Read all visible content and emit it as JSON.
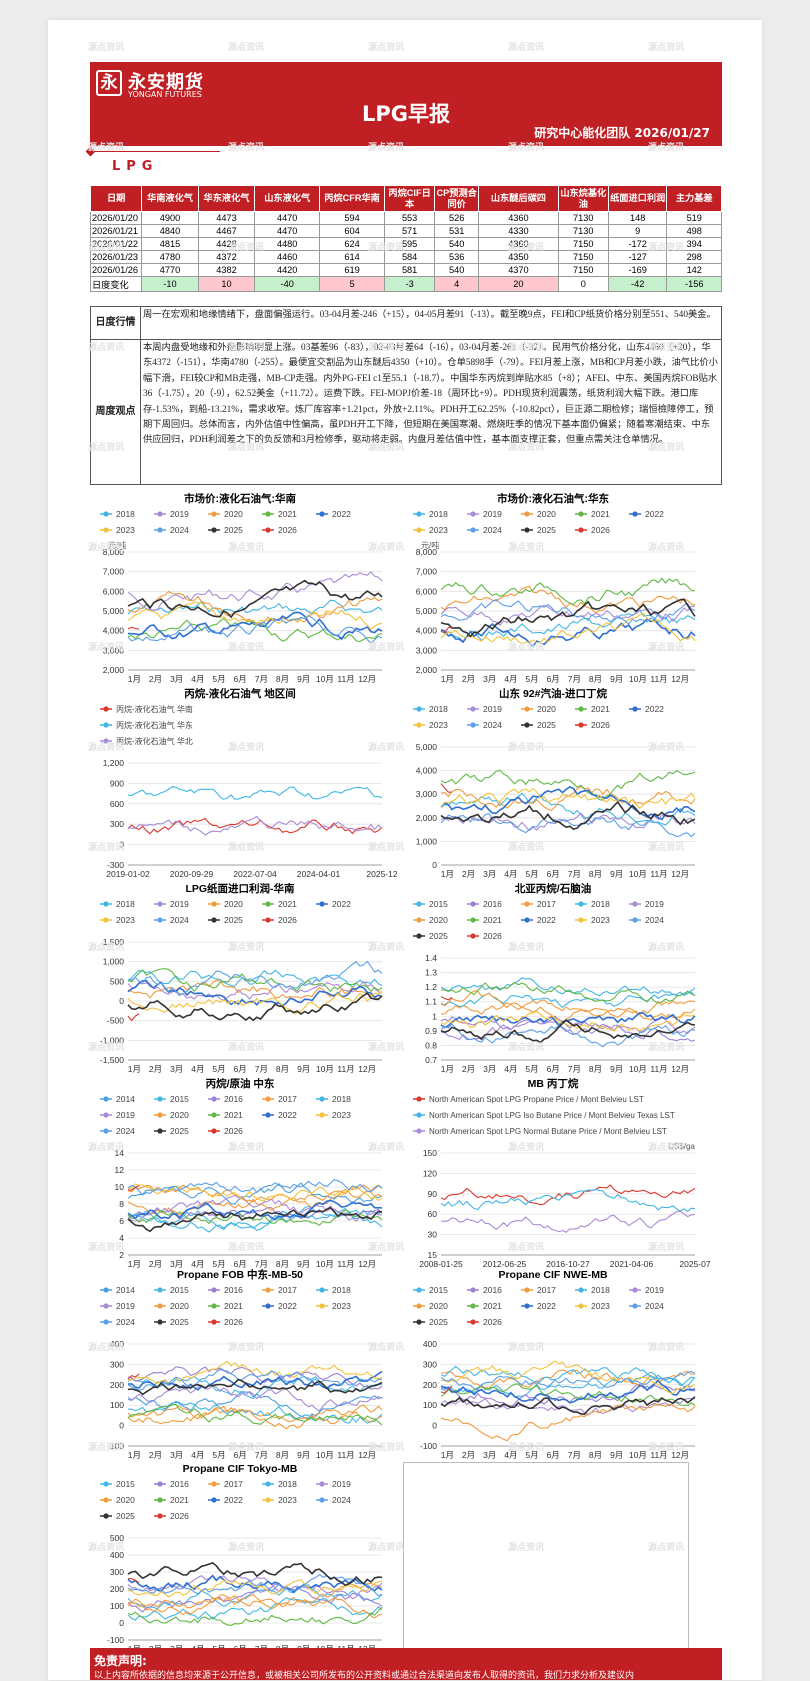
{
  "header": {
    "logo_mark": "永",
    "company_cn": "永安期货",
    "company_en": "YONGAN FUTURES",
    "title": "LPG早报",
    "team_date": "研究中心能化团队  2026/01/27"
  },
  "section": {
    "title": "LPG"
  },
  "price_table": {
    "headers": [
      "日期",
      "华南液化气",
      "华东液化气",
      "山东液化气",
      "丙烷CFR华南",
      "丙烷CIF日本",
      "CP预测合同价",
      "山东醚后碳四",
      "山东烷基化油",
      "纸面进口利润",
      "主力基差"
    ],
    "rows": [
      [
        "2026/01/20",
        "4900",
        "4473",
        "4470",
        "594",
        "553",
        "526",
        "4360",
        "7130",
        "148",
        "519"
      ],
      [
        "2026/01/21",
        "4840",
        "4467",
        "4470",
        "604",
        "571",
        "531",
        "4330",
        "7130",
        "9",
        "498"
      ],
      [
        "2026/01/22",
        "4815",
        "4428",
        "4480",
        "624",
        "595",
        "540",
        "4360",
        "7150",
        "-172",
        "394"
      ],
      [
        "2026/01/23",
        "4780",
        "4372",
        "4460",
        "614",
        "584",
        "536",
        "4350",
        "7150",
        "-127",
        "298"
      ],
      [
        "2026/01/26",
        "4770",
        "4382",
        "4420",
        "619",
        "581",
        "540",
        "4370",
        "7150",
        "-169",
        "142"
      ]
    ],
    "change_label": "日度变化",
    "change": [
      "-10",
      "10",
      "-40",
      "5",
      "-3",
      "4",
      "20",
      "0",
      "-42",
      "-156"
    ],
    "change_colors": [
      "g",
      "r",
      "g",
      "r",
      "g",
      "r",
      "r",
      "",
      "g",
      "g"
    ]
  },
  "commentary": {
    "daily_label": "日度行情",
    "daily_text": "周一在宏观和地缘情绪下，盘面偏强运行。03-04月差-246（+15），04-05月差91（-13）。截至晚9点，FEI和CP纸货价格分别至551、540美金。",
    "weekly_label": "周度观点",
    "weekly_text": "本周内盘受地缘和外盘影响明显上涨。03基差96（-83），02-03月差64（-16），03-04月差-261（-32）。民用气价格分化，山东4460（+20），华东4372（-151），华南4780（-255）。最便宜交割品为山东醚后4350（+10）。仓单5898手（-79）。FEI月差上涨，MB和CP月差小跌，油气比价小幅下滑，FEI较CP和MB走强，MB-CP走强。内外PG-FEI c1至55.1（-18.7）。中国华东丙烷到岸贴水85（+8）；AFEI、中东、美国丙烷FOB贴水36（-1.75），20（-9），62.52美金（+11.72）。运费下跌。FEI-MOPJ价差-18（周环比+9）。PDH现货利润震荡，纸货利润大幅下跌。港口库存-1.53%，到船-13.21%，需求收窄。炼厂库容率+1.21pct，外放+2.11%。PDH开工62.25%（-10.82pct），巨正源二期检修；瑞恒檢障停工，预期下周回归。总体而言，内外估值中性偏高，虽PDH开工下降，但短期在美国寒潮、燃烧旺季的情况下基本面仍偏紧；随着寒潮结束、中东供应回归，PDH利润差之下的负反馈和3月检修季，驱动将走弱。内盘月差估值中性，基本面支撑正套，但重点需关注仓单情况。"
  },
  "charts": [
    {
      "title": "市场价:液化石油气:华南",
      "unit": "元/吨",
      "legend": [
        "2018",
        "2019",
        "2020",
        "2021",
        "2022",
        "2023",
        "2024",
        "2025",
        "2026"
      ],
      "y_ticks": [
        "8,000",
        "7,000",
        "6,000",
        "5,000",
        "4,000",
        "3,000",
        "2,000"
      ],
      "x_ticks": [
        "1月",
        "2月",
        "3月",
        "4月",
        "5月",
        "6月",
        "7月",
        "8月",
        "9月",
        "10月",
        "11月",
        "12月"
      ]
    },
    {
      "title": "市场价:液化石油气:华东",
      "unit": "元/吨",
      "legend": [
        "2018",
        "2019",
        "2020",
        "2021",
        "2022",
        "2023",
        "2024",
        "2025",
        "2026"
      ],
      "y_ticks": [
        "8,000",
        "7,000",
        "6,000",
        "5,000",
        "4,000",
        "3,000",
        "2,000"
      ],
      "x_ticks": [
        "1月",
        "2月",
        "3月",
        "4月",
        "5月",
        "6月",
        "7月",
        "8月",
        "9月",
        "10月",
        "11月",
        "12月"
      ]
    },
    {
      "title": "丙烷-液化石油气 地区间",
      "unit": "",
      "legend": [
        "丙烷-液化石油气 华南",
        "丙烷-液化石油气 华东",
        "丙烷-液化石油气 华北"
      ],
      "y_ticks": [
        "1,200",
        "900",
        "600",
        "300",
        "0",
        "-300"
      ],
      "x_ticks": [
        "2019-01-02",
        "2020-09-29",
        "2022-07-04",
        "2024-04-01",
        "2025-12"
      ]
    },
    {
      "title": "山东 92#汽油-进口丁烷",
      "unit": "",
      "legend": [
        "2018",
        "2019",
        "2020",
        "2021",
        "2022",
        "2023",
        "2024",
        "2025",
        "2026"
      ],
      "y_ticks": [
        "5,000",
        "4,000",
        "3,000",
        "2,000",
        "1,000",
        "0"
      ],
      "x_ticks": [
        "1月",
        "2月",
        "3月",
        "4月",
        "5月",
        "6月",
        "7月",
        "8月",
        "9月",
        "10月",
        "11月",
        "12月"
      ]
    },
    {
      "title": "LPG纸面进口利润-华南",
      "unit": "",
      "legend": [
        "2018",
        "2019",
        "2020",
        "2021",
        "2022",
        "2023",
        "2024",
        "2025",
        "2026"
      ],
      "y_ticks": [
        "1,500",
        "1,000",
        "500",
        "0",
        "-500",
        "-1,000",
        "-1,500"
      ],
      "x_ticks": [
        "1月",
        "2月",
        "3月",
        "4月",
        "5月",
        "6月",
        "7月",
        "8月",
        "9月",
        "10月",
        "11月",
        "12月"
      ]
    },
    {
      "title": "北亚丙烷/石脑油",
      "unit": "",
      "legend": [
        "2015",
        "2016",
        "2017",
        "2018",
        "2019",
        "2020",
        "2021",
        "2022",
        "2023",
        "2024",
        "2025",
        "2026"
      ],
      "y_ticks": [
        "1.4",
        "1.3",
        "1.2",
        "1.1",
        "1",
        "0.9",
        "0.8",
        "0.7"
      ],
      "x_ticks": [
        "1月",
        "2月",
        "3月",
        "4月",
        "5月",
        "6月",
        "7月",
        "8月",
        "9月",
        "10月",
        "11月",
        "12月"
      ]
    },
    {
      "title": "丙烷/原油 中东",
      "unit": "",
      "legend": [
        "2014",
        "2015",
        "2016",
        "2017",
        "2018",
        "2019",
        "2020",
        "2021",
        "2022",
        "2023",
        "2024",
        "2025",
        "2026"
      ],
      "y_ticks": [
        "14",
        "12",
        "10",
        "8",
        "6",
        "4",
        "2"
      ],
      "x_ticks": [
        "1月",
        "2月",
        "3月",
        "4月",
        "5月",
        "6月",
        "7月",
        "8月",
        "9月",
        "10月",
        "11月",
        "12月"
      ]
    },
    {
      "title": "MB 丙丁烷",
      "unit": "US$/ga",
      "legend": [
        "North American Spot LPG Propane Price / Mont Belvieu LST",
        "North American Spot LPG Iso Butane Price / Mont Belvieu Texas LST",
        "North American Spot LPG Normal Butane Price / Mont Belvieu LST"
      ],
      "y_ticks": [
        "150",
        "120",
        "90",
        "60",
        "30",
        "15"
      ],
      "x_ticks": [
        "2008-01-25",
        "2012-06-25",
        "2016-10-27",
        "2021-04-06",
        "2025-07"
      ]
    },
    {
      "title": "Propane FOB 中东-MB-50",
      "unit": "",
      "legend": [
        "2014",
        "2015",
        "2016",
        "2017",
        "2018",
        "2019",
        "2020",
        "2021",
        "2022",
        "2023",
        "2024",
        "2025",
        "2026"
      ],
      "y_ticks": [
        "400",
        "300",
        "200",
        "100",
        "0",
        "-100"
      ],
      "x_ticks": [
        "1月",
        "2月",
        "3月",
        "4月",
        "5月",
        "6月",
        "7月",
        "8月",
        "9月",
        "10月",
        "11月",
        "12月"
      ]
    },
    {
      "title": "Propane CIF NWE-MB",
      "unit": "",
      "legend": [
        "2015",
        "2016",
        "2017",
        "2018",
        "2019",
        "2020",
        "2021",
        "2022",
        "2023",
        "2024",
        "2025",
        "2026"
      ],
      "y_ticks": [
        "400",
        "300",
        "200",
        "100",
        "0",
        "-100"
      ],
      "x_ticks": [
        "1月",
        "2月",
        "3月",
        "4月",
        "5月",
        "6月",
        "7月",
        "8月",
        "9月",
        "10月",
        "11月",
        "12月"
      ]
    },
    {
      "title": "Propane CIF Tokyo-MB",
      "unit": "",
      "legend": [
        "2015",
        "2016",
        "2017",
        "2018",
        "2019",
        "2020",
        "2021",
        "2022",
        "2023",
        "2024",
        "2025",
        "2026"
      ],
      "y_ticks": [
        "500",
        "400",
        "300",
        "200",
        "100",
        "0",
        "-100"
      ],
      "x_ticks": [
        "1月",
        "2月",
        "3月",
        "4月",
        "5月",
        "6月",
        "7月",
        "8月",
        "9月",
        "10月",
        "11月",
        "12月"
      ]
    }
  ],
  "series_colors": {
    "2014": "#4a9fe0",
    "2015": "#44b6e8",
    "2016": "#9b7fd4",
    "2017": "#f39c3c",
    "2018": "#41b6e6",
    "2019": "#a98ad8",
    "2020": "#f19a3e",
    "2021": "#5fb843",
    "2022": "#2e6fd0",
    "2023": "#f4c13a",
    "2024": "#5a9fe8",
    "2025": "#333333",
    "2026": "#d9372c"
  },
  "disclaimer": {
    "title": "免责声明:",
    "text": "以上内容所依据的信息均来源于公开信息，或被相关公司所发布的公开资料或通过合法渠道向发布人取得的资讯，我们力求分析及建议内"
  },
  "watermark": {
    "cn": "源点资讯",
    "en": "SOURCE POINT"
  }
}
